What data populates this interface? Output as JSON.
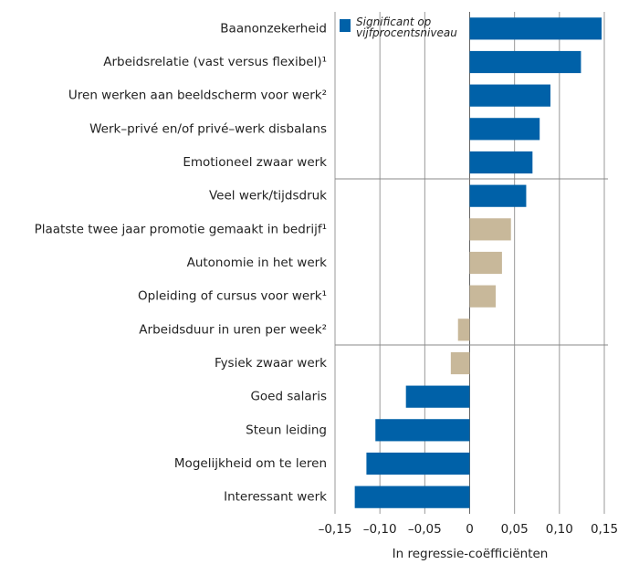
{
  "chart_data": {
    "type": "bar",
    "orientation": "horizontal",
    "x_label": "In regressie-coëfficiënten",
    "legend": {
      "label": "Significant op vijfprocentsniveau",
      "color": "#0061a8"
    },
    "categories": [
      "Baanonzekerheid",
      "Arbeidsrelatie (vast versus flexibel)¹",
      "Uren werken aan beeldscherm voor werk²",
      "Werk–privé en/of privé–werk disbalans",
      "Emotioneel zwaar werk",
      "Veel werk/tijdsdruk",
      "Plaatste twee jaar promotie gemaakt in bedrijf¹",
      "Autonomie in het werk",
      "Opleiding of cursus voor werk¹",
      "Arbeidsduur in uren per week²",
      "Fysiek zwaar werk",
      "Goed salaris",
      "Steun leiding",
      "Mogelijkheid om te leren",
      "Interessant werk"
    ],
    "values": [
      0.147,
      0.124,
      0.09,
      0.078,
      0.07,
      0.063,
      0.046,
      0.036,
      0.029,
      -0.013,
      -0.021,
      -0.071,
      -0.105,
      -0.115,
      -0.128
    ],
    "colors": [
      "#0061a8",
      "#0061a8",
      "#0061a8",
      "#0061a8",
      "#0061a8",
      "#0061a8",
      "#c8b89a",
      "#c8b89a",
      "#c8b89a",
      "#c8b89a",
      "#c8b89a",
      "#0061a8",
      "#0061a8",
      "#0061a8",
      "#0061a8"
    ],
    "xlim": [
      -0.15,
      0.15
    ],
    "xticks": [
      {
        "value": -0.15,
        "label": "–0,15"
      },
      {
        "value": -0.1,
        "label": "–0,10"
      },
      {
        "value": -0.05,
        "label": "–0,05"
      },
      0,
      {
        "value": 0.05,
        "label": "0,05"
      },
      {
        "value": 0.1,
        "label": "0,10"
      },
      {
        "value": 0.15,
        "label": "0,15"
      }
    ],
    "grid": true
  }
}
